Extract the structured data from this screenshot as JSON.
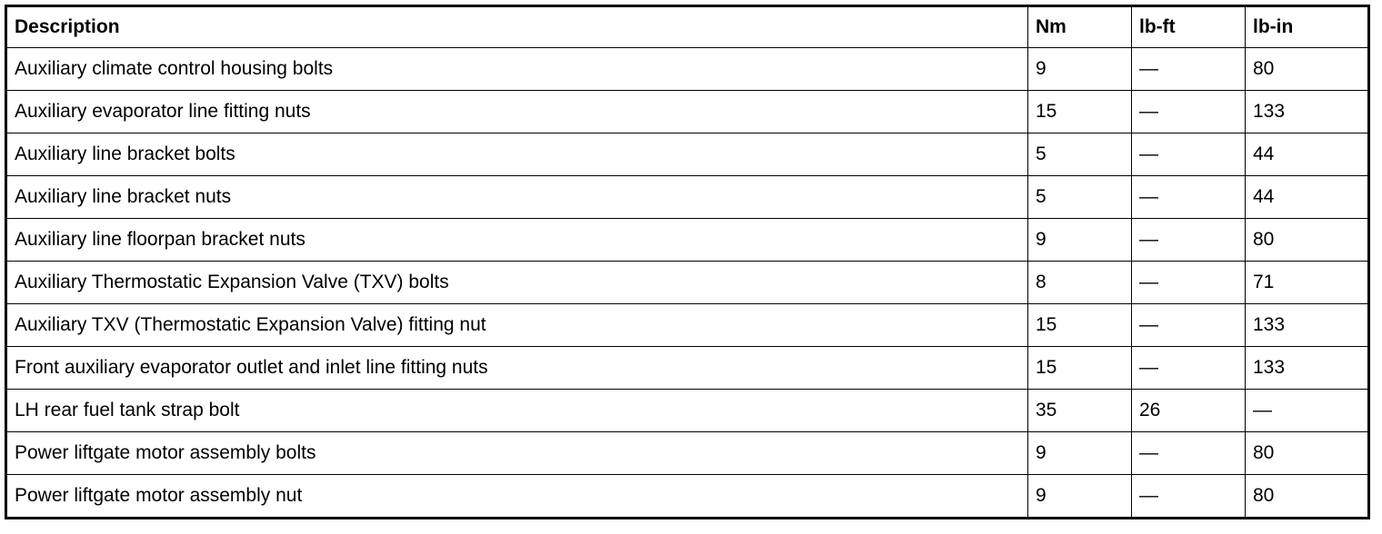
{
  "table": {
    "headers": [
      "Description",
      "Nm",
      "lb-ft",
      "lb-in"
    ],
    "rows": [
      [
        "Auxiliary climate control housing bolts",
        "9",
        "—",
        "80"
      ],
      [
        "Auxiliary evaporator line fitting nuts",
        "15",
        "—",
        "133"
      ],
      [
        "Auxiliary line bracket bolts",
        "5",
        "—",
        "44"
      ],
      [
        "Auxiliary line bracket nuts",
        "5",
        "—",
        "44"
      ],
      [
        "Auxiliary line floorpan bracket nuts",
        "9",
        "—",
        "80"
      ],
      [
        "Auxiliary Thermostatic Expansion Valve (TXV) bolts",
        "8",
        "—",
        "71"
      ],
      [
        "Auxiliary TXV (Thermostatic Expansion Valve) fitting nut",
        "15",
        "—",
        "133"
      ],
      [
        "Front auxiliary evaporator outlet and inlet line fitting nuts",
        "15",
        "—",
        "133"
      ],
      [
        "LH rear fuel tank strap bolt",
        "35",
        "26",
        "—"
      ],
      [
        "Power liftgate motor assembly bolts",
        "9",
        "—",
        "80"
      ],
      [
        "Power liftgate motor assembly nut",
        "9",
        "—",
        "80"
      ]
    ]
  }
}
